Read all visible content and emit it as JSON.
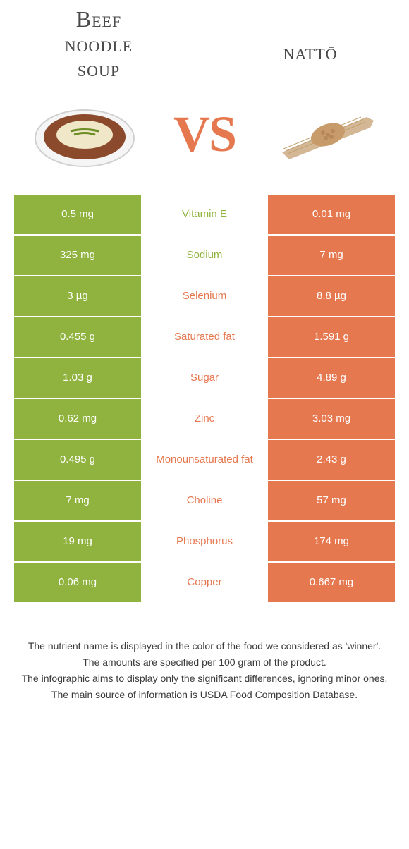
{
  "colors": {
    "green": "#8fb33e",
    "orange": "#e67850",
    "heading": "#4a4a4a",
    "white": "#ffffff"
  },
  "left_food": {
    "title_line1": "Beef",
    "title_line2": "noodle",
    "title_line3": "soup"
  },
  "right_food": {
    "title": "nattō"
  },
  "vs": "VS",
  "rows": [
    {
      "nutrient": "Vitamin E",
      "left": "0.5 mg",
      "right": "0.01 mg",
      "winner": "left"
    },
    {
      "nutrient": "Sodium",
      "left": "325 mg",
      "right": "7 mg",
      "winner": "left"
    },
    {
      "nutrient": "Selenium",
      "left": "3 µg",
      "right": "8.8 µg",
      "winner": "right"
    },
    {
      "nutrient": "Saturated fat",
      "left": "0.455 g",
      "right": "1.591 g",
      "winner": "right"
    },
    {
      "nutrient": "Sugar",
      "left": "1.03 g",
      "right": "4.89 g",
      "winner": "right"
    },
    {
      "nutrient": "Zinc",
      "left": "0.62 mg",
      "right": "3.03 mg",
      "winner": "right"
    },
    {
      "nutrient": "Monounsaturated fat",
      "left": "0.495 g",
      "right": "2.43 g",
      "winner": "right"
    },
    {
      "nutrient": "Choline",
      "left": "7 mg",
      "right": "57 mg",
      "winner": "right"
    },
    {
      "nutrient": "Phosphorus",
      "left": "19 mg",
      "right": "174 mg",
      "winner": "right"
    },
    {
      "nutrient": "Copper",
      "left": "0.06 mg",
      "right": "0.667 mg",
      "winner": "right"
    }
  ],
  "footer": {
    "line1": "The nutrient name is displayed in the color of the food we considered as 'winner'.",
    "line2": "The amounts are specified per 100 gram of the product.",
    "line3": "The infographic aims to display only the significant differences, ignoring minor ones.",
    "line4": "The main source of information is USDA Food Composition Database."
  }
}
